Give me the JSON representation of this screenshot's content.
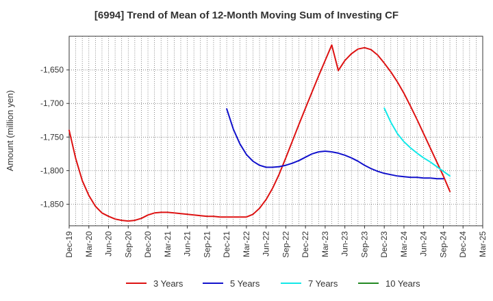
{
  "chart_data": {
    "type": "line",
    "title": "[6994]  Trend of Mean of 12-Month Moving Sum of Investing CF",
    "xlabel": "",
    "ylabel": "Amount (million yen)",
    "ylim": [
      -1882,
      -1600
    ],
    "yticks": [
      -1650,
      -1700,
      -1750,
      -1800,
      -1850
    ],
    "ytick_labels": [
      "-1,650",
      "-1,700",
      "-1,750",
      "-1,800",
      "-1,850"
    ],
    "xlim": [
      "2019-12",
      "2025-03"
    ],
    "xtick_labels": [
      "Dec-19",
      "Mar-20",
      "Jun-20",
      "Sep-20",
      "Dec-20",
      "Mar-21",
      "Jun-21",
      "Sep-21",
      "Dec-21",
      "Mar-22",
      "Jun-22",
      "Sep-22",
      "Dec-22",
      "Mar-23",
      "Jun-23",
      "Sep-23",
      "Dec-23",
      "Mar-24",
      "Jun-24",
      "Sep-24",
      "Dec-24",
      "Mar-25"
    ],
    "grid": true,
    "legend_position": "bottom",
    "series": [
      {
        "name": "3 Years",
        "color": "#dd1111",
        "points": [
          [
            "2019-12",
            -1740
          ],
          [
            "2020-01",
            -1782
          ],
          [
            "2020-02",
            -1815
          ],
          [
            "2020-03",
            -1837
          ],
          [
            "2020-04",
            -1853
          ],
          [
            "2020-05",
            -1863
          ],
          [
            "2020-06",
            -1868
          ],
          [
            "2020-07",
            -1872
          ],
          [
            "2020-08",
            -1874
          ],
          [
            "2020-09",
            -1875
          ],
          [
            "2020-10",
            -1874
          ],
          [
            "2020-11",
            -1871
          ],
          [
            "2020-12",
            -1866
          ],
          [
            "2021-01",
            -1863
          ],
          [
            "2021-02",
            -1862
          ],
          [
            "2021-03",
            -1862
          ],
          [
            "2021-04",
            -1863
          ],
          [
            "2021-05",
            -1864
          ],
          [
            "2021-06",
            -1865
          ],
          [
            "2021-07",
            -1866
          ],
          [
            "2021-08",
            -1867
          ],
          [
            "2021-09",
            -1868
          ],
          [
            "2021-10",
            -1868
          ],
          [
            "2021-11",
            -1869
          ],
          [
            "2021-12",
            -1869
          ],
          [
            "2022-01",
            -1869
          ],
          [
            "2022-02",
            -1869
          ],
          [
            "2022-03",
            -1869
          ],
          [
            "2022-04",
            -1865
          ],
          [
            "2022-05",
            -1856
          ],
          [
            "2022-06",
            -1843
          ],
          [
            "2022-07",
            -1826
          ],
          [
            "2022-08",
            -1805
          ],
          [
            "2022-09",
            -1781
          ],
          [
            "2022-10",
            -1756
          ],
          [
            "2022-11",
            -1731
          ],
          [
            "2022-12",
            -1707
          ],
          [
            "2023-01",
            -1683
          ],
          [
            "2023-02",
            -1659
          ],
          [
            "2023-03",
            -1636
          ],
          [
            "2023-04",
            -1613
          ],
          [
            "2023-05",
            -1651
          ],
          [
            "2023-06",
            -1636
          ],
          [
            "2023-07",
            -1626
          ],
          [
            "2023-08",
            -1619
          ],
          [
            "2023-09",
            -1617
          ],
          [
            "2023-10",
            -1620
          ],
          [
            "2023-11",
            -1628
          ],
          [
            "2023-12",
            -1640
          ],
          [
            "2024-01",
            -1653
          ],
          [
            "2024-02",
            -1668
          ],
          [
            "2024-03",
            -1685
          ],
          [
            "2024-04",
            -1704
          ],
          [
            "2024-05",
            -1724
          ],
          [
            "2024-06",
            -1745
          ],
          [
            "2024-07",
            -1766
          ],
          [
            "2024-08",
            -1787
          ],
          [
            "2024-09",
            -1808
          ],
          [
            "2024-10",
            -1831
          ]
        ]
      },
      {
        "name": "5 Years",
        "color": "#1111cc",
        "points": [
          [
            "2021-12",
            -1708
          ],
          [
            "2022-01",
            -1738
          ],
          [
            "2022-02",
            -1760
          ],
          [
            "2022-03",
            -1776
          ],
          [
            "2022-04",
            -1786
          ],
          [
            "2022-05",
            -1792
          ],
          [
            "2022-06",
            -1795
          ],
          [
            "2022-07",
            -1795
          ],
          [
            "2022-08",
            -1794
          ],
          [
            "2022-09",
            -1792
          ],
          [
            "2022-10",
            -1789
          ],
          [
            "2022-11",
            -1785
          ],
          [
            "2022-12",
            -1780
          ],
          [
            "2023-01",
            -1775
          ],
          [
            "2023-02",
            -1772
          ],
          [
            "2023-03",
            -1771
          ],
          [
            "2023-04",
            -1772
          ],
          [
            "2023-05",
            -1774
          ],
          [
            "2023-06",
            -1777
          ],
          [
            "2023-07",
            -1781
          ],
          [
            "2023-08",
            -1786
          ],
          [
            "2023-09",
            -1792
          ],
          [
            "2023-10",
            -1797
          ],
          [
            "2023-11",
            -1801
          ],
          [
            "2023-12",
            -1804
          ],
          [
            "2024-01",
            -1806
          ],
          [
            "2024-02",
            -1808
          ],
          [
            "2024-03",
            -1809
          ],
          [
            "2024-04",
            -1810
          ],
          [
            "2024-05",
            -1810
          ],
          [
            "2024-06",
            -1811
          ],
          [
            "2024-07",
            -1811
          ],
          [
            "2024-08",
            -1812
          ],
          [
            "2024-09",
            -1812
          ]
        ]
      },
      {
        "name": "7 Years",
        "color": "#11e8e8",
        "points": [
          [
            "2023-12",
            -1707
          ],
          [
            "2024-01",
            -1728
          ],
          [
            "2024-02",
            -1745
          ],
          [
            "2024-03",
            -1757
          ],
          [
            "2024-04",
            -1766
          ],
          [
            "2024-05",
            -1774
          ],
          [
            "2024-06",
            -1781
          ],
          [
            "2024-07",
            -1787
          ],
          [
            "2024-08",
            -1794
          ],
          [
            "2024-09",
            -1801
          ],
          [
            "2024-10",
            -1808
          ]
        ]
      },
      {
        "name": "10 Years",
        "color": "#228822",
        "points": []
      }
    ]
  }
}
